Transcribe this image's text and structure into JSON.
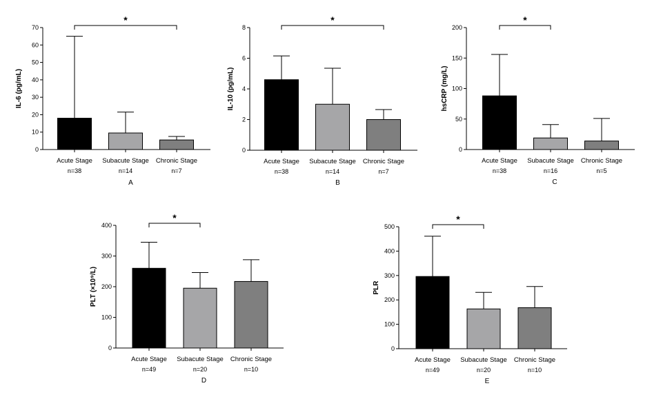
{
  "figure": {
    "panels": [
      "A",
      "B",
      "C",
      "D",
      "E"
    ]
  },
  "chart_data": [
    {
      "type": "bar",
      "panel": "A",
      "ylabel": "IL-6 (pg/mL)",
      "ylim": [
        0,
        70
      ],
      "yticks": [
        "0",
        "10",
        "20",
        "30",
        "40",
        "50",
        "60",
        "70"
      ],
      "categories": [
        "Acute Stage",
        "Subacute Stage",
        "Chronic Stage"
      ],
      "n_labels": [
        "n=38",
        "n=14",
        "n=7"
      ],
      "values": [
        18,
        9.5,
        5.5
      ],
      "error_upper": [
        65,
        21.5,
        7.5
      ],
      "colors": [
        "#000000",
        "#a6a6a8",
        "#7f7f7f"
      ],
      "significance": {
        "from": 0,
        "to": 2,
        "label": "*"
      }
    },
    {
      "type": "bar",
      "panel": "B",
      "ylabel": "IL-10 (pg/mL)",
      "ylim": [
        0,
        8
      ],
      "yticks": [
        "0",
        "2",
        "4",
        "6",
        "8"
      ],
      "categories": [
        "Acute Stage",
        "Subacute Stage",
        "Chronic Stage"
      ],
      "n_labels": [
        "n=38",
        "n=14",
        "n=7"
      ],
      "values": [
        4.6,
        3.0,
        2.0
      ],
      "error_upper": [
        6.15,
        5.35,
        2.65
      ],
      "colors": [
        "#000000",
        "#a6a6a8",
        "#7f7f7f"
      ],
      "significance": {
        "from": 0,
        "to": 2,
        "label": "*"
      }
    },
    {
      "type": "bar",
      "panel": "C",
      "ylabel": "hsCRP (mg/L)",
      "ylim": [
        0,
        200
      ],
      "yticks": [
        "0",
        "50",
        "100",
        "150",
        "200"
      ],
      "categories": [
        "Acute Stage",
        "Subacute Stage",
        "Chronic Stage"
      ],
      "n_labels": [
        "n=38",
        "n=16",
        "n=5"
      ],
      "values": [
        88,
        19,
        14
      ],
      "error_upper": [
        156,
        41,
        51
      ],
      "colors": [
        "#000000",
        "#a6a6a8",
        "#7f7f7f"
      ],
      "significance": {
        "from": 0,
        "to": 1,
        "label": "*"
      }
    },
    {
      "type": "bar",
      "panel": "D",
      "ylabel": "PLT (×10⁹/L)",
      "ylim": [
        0,
        400
      ],
      "yticks": [
        "0",
        "100",
        "200",
        "300",
        "400"
      ],
      "categories": [
        "Acute Stage",
        "Subacute Stage",
        "Chronic Stage"
      ],
      "n_labels": [
        "n=49",
        "n=20",
        "n=10"
      ],
      "values": [
        260,
        195,
        217
      ],
      "error_upper": [
        345,
        246,
        288
      ],
      "colors": [
        "#000000",
        "#a6a6a8",
        "#7f7f7f"
      ],
      "significance": {
        "from": 0,
        "to": 1,
        "label": "*"
      }
    },
    {
      "type": "bar",
      "panel": "E",
      "ylabel": "PLR",
      "ylim": [
        0,
        500
      ],
      "yticks": [
        "0",
        "100",
        "200",
        "300",
        "400",
        "500"
      ],
      "categories": [
        "Acute Stage",
        "Subacute Stage",
        "Chronic Stage"
      ],
      "n_labels": [
        "n=49",
        "n=20",
        "n=10"
      ],
      "values": [
        296,
        163,
        168
      ],
      "error_upper": [
        461,
        231,
        255
      ],
      "colors": [
        "#000000",
        "#a6a6a8",
        "#7f7f7f"
      ],
      "significance": {
        "from": 0,
        "to": 1,
        "label": "*"
      }
    }
  ]
}
